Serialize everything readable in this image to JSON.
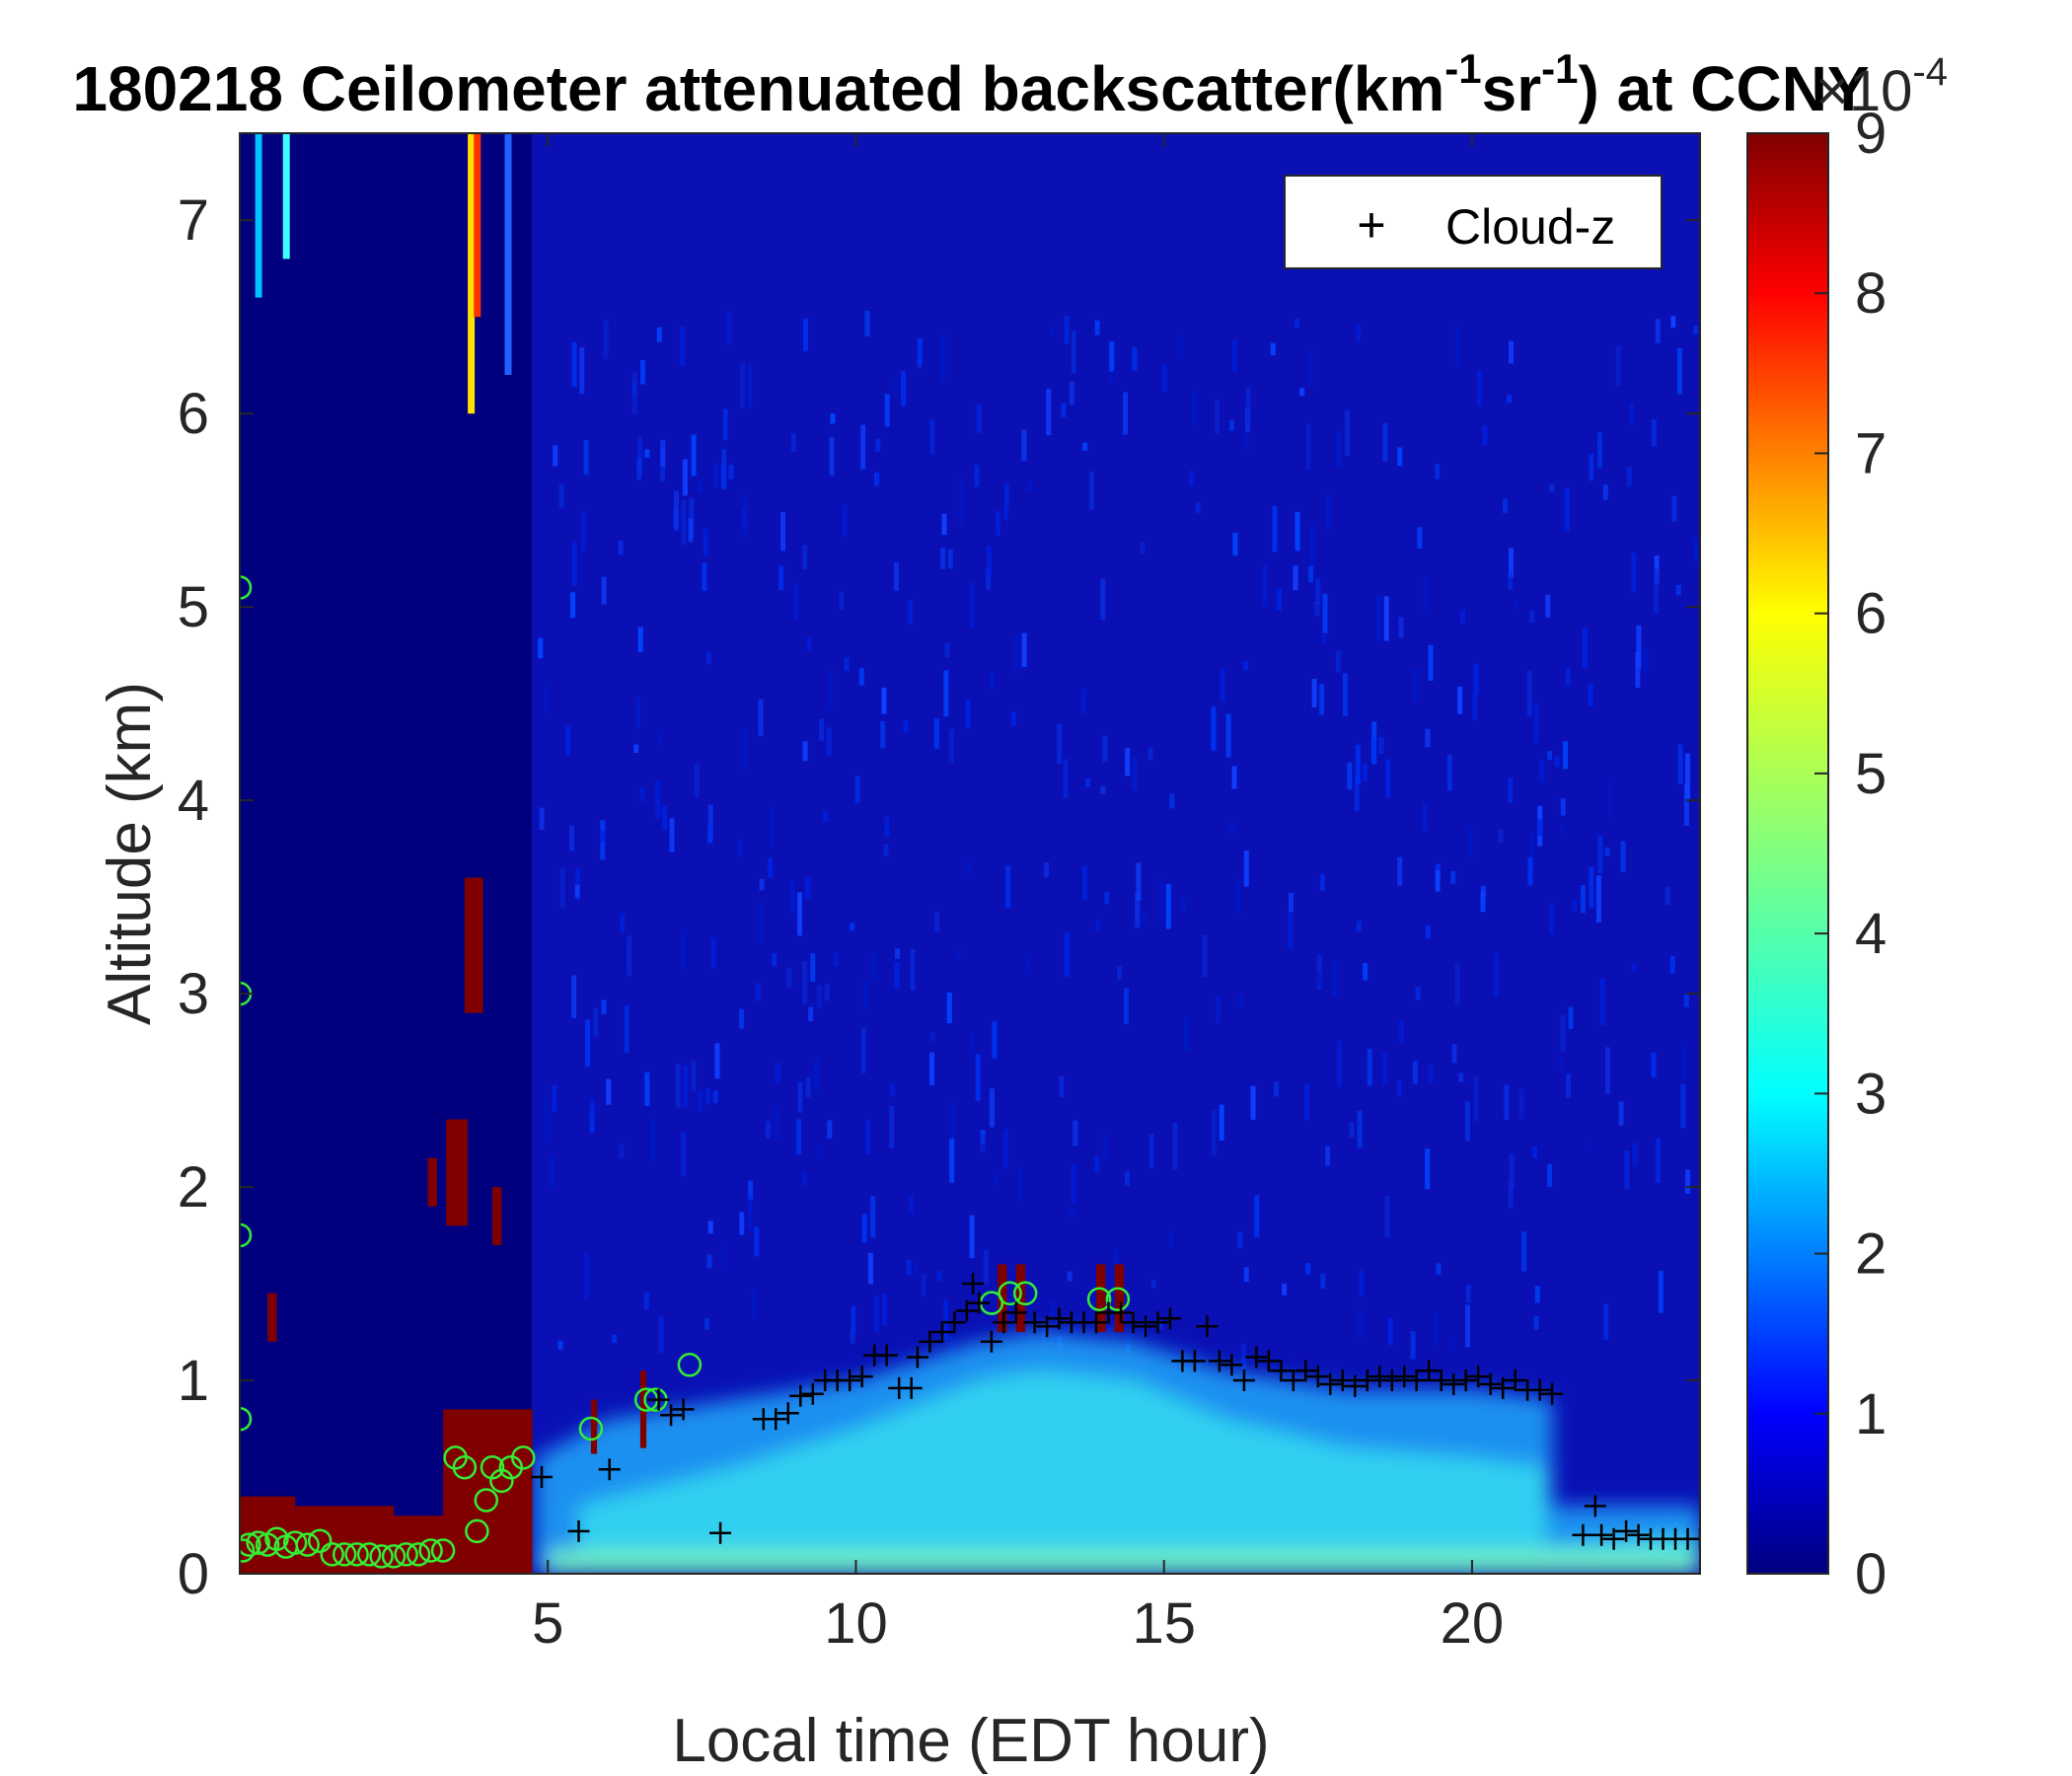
{
  "chart_data": {
    "type": "heatmap",
    "title": "180218 Ceilometer attenuated backscatter(km^-1sr^-1) at CCNY",
    "title_parts": {
      "lead": "180218 Ceilometer attenuated backscatter(km",
      "sup1": "-1",
      "mid": "sr",
      "sup2": "-1",
      "tail": ") at CCNY"
    },
    "xlabel": "Local time (EDT hour)",
    "ylabel": "Altitude (km)",
    "xlim": [
      0,
      23.7
    ],
    "ylim": [
      0,
      7.45
    ],
    "xticks": [
      "5",
      "10",
      "15",
      "20"
    ],
    "xtick_values": [
      5,
      10,
      15,
      20
    ],
    "yticks": [
      "0",
      "1",
      "2",
      "3",
      "4",
      "5",
      "6",
      "7"
    ],
    "ytick_values": [
      0,
      1,
      2,
      3,
      4,
      5,
      6,
      7
    ],
    "colorbar": {
      "range": [
        0,
        9
      ],
      "ticks": [
        "0",
        "1",
        "2",
        "3",
        "4",
        "5",
        "6",
        "7",
        "8",
        "9"
      ],
      "tick_values": [
        0,
        1,
        2,
        3,
        4,
        5,
        6,
        7,
        8,
        9
      ],
      "exponent_label": "×10",
      "exponent_power": "-4",
      "colormap": "jet"
    },
    "legend": {
      "entries": [
        {
          "marker": "+",
          "label": "Cloud-z"
        }
      ],
      "placement": "top-right"
    },
    "cloud_z_series": {
      "name": "Cloud-z",
      "marker": "+",
      "color": "#000000",
      "points": [
        [
          4.9,
          0.5
        ],
        [
          5.5,
          0.22
        ],
        [
          6.0,
          0.54
        ],
        [
          6.8,
          0.9
        ],
        [
          7.0,
          0.82
        ],
        [
          7.2,
          0.85
        ],
        [
          7.8,
          0.21
        ],
        [
          8.5,
          0.8
        ],
        [
          8.7,
          0.8
        ],
        [
          8.9,
          0.83
        ],
        [
          9.1,
          0.92
        ],
        [
          9.3,
          0.93
        ],
        [
          9.5,
          1.0
        ],
        [
          9.7,
          1.0
        ],
        [
          9.9,
          1.0
        ],
        [
          10.1,
          1.02
        ],
        [
          10.3,
          1.13
        ],
        [
          10.5,
          1.13
        ],
        [
          10.7,
          0.96
        ],
        [
          10.9,
          0.96
        ],
        [
          11.0,
          1.12
        ],
        [
          11.2,
          1.2
        ],
        [
          11.4,
          1.25
        ],
        [
          11.6,
          1.3
        ],
        [
          11.8,
          1.36
        ],
        [
          11.9,
          1.5
        ],
        [
          12.0,
          1.4
        ],
        [
          12.2,
          1.2
        ],
        [
          12.4,
          1.3
        ],
        [
          12.6,
          1.35
        ],
        [
          12.9,
          1.3
        ],
        [
          13.1,
          1.28
        ],
        [
          13.3,
          1.32
        ],
        [
          13.5,
          1.3
        ],
        [
          13.7,
          1.3
        ],
        [
          13.9,
          1.3
        ],
        [
          14.1,
          1.35
        ],
        [
          14.3,
          1.35
        ],
        [
          14.5,
          1.3
        ],
        [
          14.7,
          1.28
        ],
        [
          14.9,
          1.3
        ],
        [
          15.1,
          1.32
        ],
        [
          15.3,
          1.1
        ],
        [
          15.5,
          1.1
        ],
        [
          15.7,
          1.28
        ],
        [
          15.9,
          1.1
        ],
        [
          16.1,
          1.08
        ],
        [
          16.3,
          1.0
        ],
        [
          16.5,
          1.12
        ],
        [
          16.7,
          1.1
        ],
        [
          16.9,
          1.05
        ],
        [
          17.1,
          1.0
        ],
        [
          17.3,
          1.05
        ],
        [
          17.5,
          1.02
        ],
        [
          17.7,
          0.98
        ],
        [
          17.9,
          1.0
        ],
        [
          18.1,
          0.97
        ],
        [
          18.3,
          1.0
        ],
        [
          18.5,
          1.02
        ],
        [
          18.7,
          1.0
        ],
        [
          18.9,
          1.02
        ],
        [
          19.1,
          1.0
        ],
        [
          19.3,
          1.05
        ],
        [
          19.5,
          1.0
        ],
        [
          19.7,
          0.98
        ],
        [
          19.9,
          1.0
        ],
        [
          20.1,
          1.02
        ],
        [
          20.3,
          0.98
        ],
        [
          20.5,
          0.96
        ],
        [
          20.7,
          1.0
        ],
        [
          20.9,
          0.95
        ],
        [
          21.1,
          0.95
        ],
        [
          21.3,
          0.93
        ],
        [
          21.8,
          0.2
        ],
        [
          22.0,
          0.35
        ],
        [
          22.1,
          0.2
        ],
        [
          22.3,
          0.18
        ],
        [
          22.5,
          0.22
        ],
        [
          22.7,
          0.2
        ],
        [
          22.9,
          0.18
        ],
        [
          23.1,
          0.18
        ],
        [
          23.3,
          0.18
        ],
        [
          23.5,
          0.18
        ],
        [
          23.7,
          0.18
        ]
      ]
    },
    "marker_series": {
      "marker": "o",
      "color": "#33ee33",
      "points": [
        [
          0.05,
          0.12
        ],
        [
          0.15,
          0.15
        ],
        [
          0.3,
          0.16
        ],
        [
          0.45,
          0.15
        ],
        [
          0.6,
          0.18
        ],
        [
          0.75,
          0.14
        ],
        [
          0.9,
          0.16
        ],
        [
          1.1,
          0.15
        ],
        [
          1.3,
          0.17
        ],
        [
          1.5,
          0.1
        ],
        [
          1.7,
          0.1
        ],
        [
          1.9,
          0.1
        ],
        [
          2.1,
          0.1
        ],
        [
          2.3,
          0.09
        ],
        [
          2.5,
          0.09
        ],
        [
          2.7,
          0.1
        ],
        [
          2.9,
          0.1
        ],
        [
          3.1,
          0.12
        ],
        [
          3.3,
          0.12
        ],
        [
          3.5,
          0.6
        ],
        [
          3.65,
          0.55
        ],
        [
          3.85,
          0.22
        ],
        [
          4.0,
          0.38
        ],
        [
          4.1,
          0.55
        ],
        [
          4.25,
          0.48
        ],
        [
          4.4,
          0.55
        ],
        [
          4.6,
          0.6
        ],
        [
          5.7,
          0.75
        ],
        [
          6.6,
          0.9
        ],
        [
          6.75,
          0.9
        ],
        [
          7.3,
          1.08
        ],
        [
          12.2,
          1.4
        ],
        [
          12.5,
          1.45
        ],
        [
          12.75,
          1.45
        ],
        [
          13.95,
          1.42
        ],
        [
          14.25,
          1.42
        ],
        [
          0.0,
          5.1
        ],
        [
          0.0,
          3.0
        ],
        [
          0.0,
          1.75
        ],
        [
          0.0,
          0.8
        ]
      ]
    },
    "high_backscatter_blocks": [
      [
        0.0,
        0.9,
        0.0,
        0.4
      ],
      [
        0.9,
        2.5,
        0.0,
        0.35
      ],
      [
        2.5,
        3.3,
        0.0,
        0.3
      ],
      [
        3.3,
        4.75,
        0.0,
        0.85
      ],
      [
        0.45,
        0.6,
        1.2,
        1.45
      ],
      [
        3.05,
        3.2,
        1.9,
        2.15
      ],
      [
        3.35,
        3.7,
        1.8,
        2.35
      ],
      [
        3.65,
        3.95,
        2.9,
        3.6
      ],
      [
        4.1,
        4.25,
        1.7,
        2.0
      ],
      [
        5.7,
        5.8,
        0.62,
        0.9
      ],
      [
        6.5,
        6.6,
        0.65,
        1.05
      ],
      [
        12.3,
        12.45,
        1.25,
        1.6
      ],
      [
        12.6,
        12.75,
        1.25,
        1.6
      ],
      [
        13.9,
        14.05,
        1.25,
        1.6
      ],
      [
        14.2,
        14.35,
        1.25,
        1.6
      ]
    ]
  }
}
